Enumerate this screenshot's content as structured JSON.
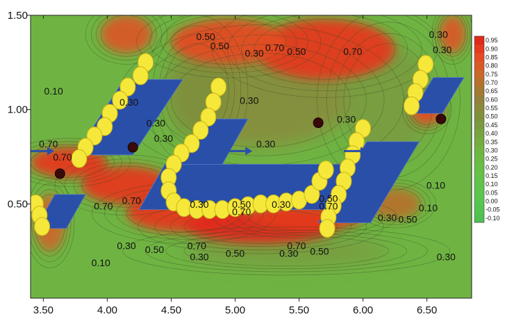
{
  "chart_data": {
    "type": "heatmap",
    "title": "",
    "xlabel": "",
    "ylabel": "",
    "xlim": [
      3.4,
      6.85
    ],
    "ylim": [
      0.0,
      1.5
    ],
    "x_ticks": [
      "3.50",
      "4.00",
      "4.50",
      "5.00",
      "5.50",
      "6.00",
      "6.50"
    ],
    "x_tick_values": [
      3.5,
      4.0,
      4.5,
      5.0,
      5.5,
      6.0,
      6.5
    ],
    "y_ticks": [
      "1.50",
      "1.00",
      "0.50"
    ],
    "y_tick_values": [
      1.5,
      1.0,
      0.5
    ],
    "colorbar": {
      "labels": [
        "0.95",
        "0.90",
        "0.85",
        "0.80",
        "0.75",
        "0.70",
        "0.65",
        "0.60",
        "0.55",
        "0.50",
        "0.45",
        "0.40",
        "0.35",
        "0.30",
        "0.25",
        "0.20",
        "0.15",
        "0.10",
        "0.05",
        "0.00",
        "-0.05",
        "-0.10"
      ],
      "colors": [
        "#e0281c",
        "#e33a20",
        "#e34c24",
        "#d85a26",
        "#c9692a",
        "#b4722d",
        "#a27a32",
        "#94803a",
        "#8a8a3c",
        "#7f903c",
        "#7a9a3e",
        "#78a43f",
        "#74ac40",
        "#70b442",
        "#6cba44",
        "#68be46",
        "#64c248",
        "#60c44a",
        "#5cc64c",
        "#58c64e",
        "#54c450",
        "#50c052"
      ]
    },
    "contour_labels": [
      {
        "x": 3.58,
        "y": 1.08,
        "text": "0.10"
      },
      {
        "x": 4.88,
        "y": 1.32,
        "text": "0.50"
      },
      {
        "x": 4.77,
        "y": 1.37,
        "text": "0.50"
      },
      {
        "x": 5.15,
        "y": 1.28,
        "text": "0.30"
      },
      {
        "x": 5.31,
        "y": 1.31,
        "text": "0.70"
      },
      {
        "x": 5.48,
        "y": 1.29,
        "text": "0.50"
      },
      {
        "x": 5.92,
        "y": 1.29,
        "text": "0.70"
      },
      {
        "x": 6.59,
        "y": 1.38,
        "text": "0.30"
      },
      {
        "x": 6.62,
        "y": 1.3,
        "text": "0.30"
      },
      {
        "x": 5.11,
        "y": 1.03,
        "text": "0.30"
      },
      {
        "x": 4.17,
        "y": 1.02,
        "text": "0.30"
      },
      {
        "x": 4.38,
        "y": 0.91,
        "text": "0.30"
      },
      {
        "x": 4.44,
        "y": 0.83,
        "text": "0.30"
      },
      {
        "x": 5.87,
        "y": 0.93,
        "text": "0.30"
      },
      {
        "x": 5.24,
        "y": 0.8,
        "text": "0.30"
      },
      {
        "x": 3.54,
        "y": 0.8,
        "text": "0.70"
      },
      {
        "x": 3.65,
        "y": 0.73,
        "text": "0.70"
      },
      {
        "x": 6.57,
        "y": 0.58,
        "text": "0.10"
      },
      {
        "x": 6.51,
        "y": 0.46,
        "text": "0.10"
      },
      {
        "x": 3.97,
        "y": 0.47,
        "text": "0.70"
      },
      {
        "x": 4.19,
        "y": 0.5,
        "text": "0.70"
      },
      {
        "x": 4.72,
        "y": 0.48,
        "text": "0.30"
      },
      {
        "x": 5.05,
        "y": 0.48,
        "text": "0.50"
      },
      {
        "x": 5.05,
        "y": 0.44,
        "text": "0.70"
      },
      {
        "x": 5.36,
        "y": 0.48,
        "text": "0.30"
      },
      {
        "x": 5.73,
        "y": 0.51,
        "text": "0.50"
      },
      {
        "x": 5.73,
        "y": 0.47,
        "text": "0.70"
      },
      {
        "x": 6.19,
        "y": 0.41,
        "text": "0.30"
      },
      {
        "x": 6.35,
        "y": 0.4,
        "text": "0.50"
      },
      {
        "x": 4.15,
        "y": 0.26,
        "text": "0.30"
      },
      {
        "x": 4.37,
        "y": 0.24,
        "text": "0.50"
      },
      {
        "x": 4.7,
        "y": 0.26,
        "text": "0.70"
      },
      {
        "x": 4.72,
        "y": 0.2,
        "text": "0.30"
      },
      {
        "x": 5.0,
        "y": 0.22,
        "text": "0.50"
      },
      {
        "x": 5.42,
        "y": 0.22,
        "text": "0.30"
      },
      {
        "x": 5.48,
        "y": 0.26,
        "text": "0.70"
      },
      {
        "x": 5.66,
        "y": 0.23,
        "text": "0.50"
      },
      {
        "x": 6.65,
        "y": 0.2,
        "text": "0.30"
      },
      {
        "x": 3.95,
        "y": 0.17,
        "text": "0.10"
      }
    ],
    "hot_zones": [
      {
        "x": 5.7,
        "y": 1.32,
        "rx": 0.55,
        "ry": 0.16,
        "level": 0.92
      },
      {
        "x": 4.95,
        "y": 1.36,
        "rx": 0.45,
        "ry": 0.12,
        "level": 0.85
      },
      {
        "x": 4.15,
        "y": 1.4,
        "rx": 0.2,
        "ry": 0.1,
        "level": 0.8
      },
      {
        "x": 6.7,
        "y": 1.4,
        "rx": 0.1,
        "ry": 0.1,
        "level": 0.8
      },
      {
        "x": 6.5,
        "y": 1.0,
        "rx": 0.12,
        "ry": 0.08,
        "level": 0.85
      },
      {
        "x": 3.7,
        "y": 0.72,
        "rx": 0.3,
        "ry": 0.08,
        "level": 0.88
      },
      {
        "x": 4.15,
        "y": 0.6,
        "rx": 0.35,
        "ry": 0.1,
        "level": 0.9
      },
      {
        "x": 4.6,
        "y": 0.45,
        "rx": 0.45,
        "ry": 0.1,
        "level": 0.92
      },
      {
        "x": 5.2,
        "y": 0.38,
        "rx": 0.6,
        "ry": 0.09,
        "level": 0.95
      },
      {
        "x": 5.55,
        "y": 0.43,
        "rx": 0.45,
        "ry": 0.07,
        "level": 0.9
      },
      {
        "x": 3.55,
        "y": 0.4,
        "rx": 0.12,
        "ry": 0.15,
        "level": 0.75
      },
      {
        "x": 6.25,
        "y": 0.5,
        "rx": 0.2,
        "ry": 0.08,
        "level": 0.7
      }
    ],
    "olive_zones": [
      {
        "x": 5.2,
        "y": 1.05,
        "rx": 0.7,
        "ry": 0.25,
        "level": 0.55
      },
      {
        "x": 6.2,
        "y": 1.05,
        "rx": 0.35,
        "ry": 0.3,
        "level": 0.45
      },
      {
        "x": 4.7,
        "y": 1.1,
        "rx": 0.25,
        "ry": 0.25,
        "level": 0.5
      },
      {
        "x": 5.4,
        "y": 0.25,
        "rx": 0.8,
        "ry": 0.08,
        "level": 0.45
      }
    ],
    "vortex_points": [
      {
        "x": 3.63,
        "y": 0.66
      },
      {
        "x": 4.2,
        "y": 0.8
      },
      {
        "x": 5.65,
        "y": 0.93
      },
      {
        "x": 6.61,
        "y": 0.95
      }
    ],
    "flow_arrows": [
      {
        "x": 3.4,
        "y": 0.78
      },
      {
        "x": 4.95,
        "y": 0.78
      },
      {
        "x": 5.85,
        "y": 0.78
      }
    ],
    "blue_plates": [
      [
        [
          4.13,
          1.16
        ],
        [
          4.59,
          1.16
        ],
        [
          4.2,
          0.76
        ],
        [
          3.75,
          0.76
        ]
      ],
      [
        [
          4.75,
          0.95
        ],
        [
          5.1,
          0.95
        ],
        [
          4.9,
          0.71
        ],
        [
          4.55,
          0.71
        ]
      ],
      [
        [
          4.45,
          0.71
        ],
        [
          5.92,
          0.71
        ],
        [
          5.72,
          0.47
        ],
        [
          4.25,
          0.47
        ]
      ],
      [
        [
          6.03,
          0.83
        ],
        [
          6.44,
          0.83
        ],
        [
          6.06,
          0.4
        ],
        [
          5.65,
          0.4
        ]
      ],
      [
        [
          6.55,
          1.17
        ],
        [
          6.79,
          1.17
        ],
        [
          6.62,
          0.98
        ],
        [
          6.38,
          0.98
        ]
      ],
      [
        [
          3.59,
          0.55
        ],
        [
          3.83,
          0.55
        ],
        [
          3.68,
          0.37
        ],
        [
          3.44,
          0.37
        ]
      ]
    ],
    "yellow_beads": [
      [
        [
          4.3,
          1.25
        ],
        [
          4.26,
          1.18
        ],
        [
          4.16,
          1.12
        ],
        [
          4.1,
          1.05
        ],
        [
          4.02,
          0.98
        ],
        [
          3.98,
          0.91
        ],
        [
          3.9,
          0.86
        ],
        [
          3.83,
          0.8
        ],
        [
          3.78,
          0.74
        ]
      ],
      [
        [
          4.87,
          1.12
        ],
        [
          4.83,
          1.04
        ],
        [
          4.79,
          0.96
        ],
        [
          4.73,
          0.89
        ],
        [
          4.66,
          0.82
        ],
        [
          4.58,
          0.77
        ],
        [
          4.52,
          0.71
        ],
        [
          4.48,
          0.64
        ],
        [
          4.48,
          0.57
        ],
        [
          4.52,
          0.51
        ],
        [
          4.6,
          0.48
        ],
        [
          4.7,
          0.47
        ],
        [
          4.8,
          0.47
        ],
        [
          4.9,
          0.47
        ],
        [
          5.0,
          0.48
        ],
        [
          5.1,
          0.49
        ],
        [
          5.2,
          0.5
        ],
        [
          5.3,
          0.5
        ],
        [
          5.4,
          0.51
        ],
        [
          5.5,
          0.52
        ],
        [
          5.6,
          0.55
        ],
        [
          5.66,
          0.62
        ],
        [
          5.71,
          0.68
        ]
      ],
      [
        [
          6.0,
          0.9
        ],
        [
          5.95,
          0.83
        ],
        [
          5.92,
          0.76
        ],
        [
          5.88,
          0.69
        ],
        [
          5.85,
          0.62
        ],
        [
          5.81,
          0.55
        ],
        [
          5.77,
          0.49
        ],
        [
          5.73,
          0.43
        ],
        [
          5.72,
          0.37
        ]
      ],
      [
        [
          6.49,
          1.24
        ],
        [
          6.45,
          1.16
        ],
        [
          6.41,
          1.09
        ],
        [
          6.38,
          1.02
        ]
      ],
      [
        [
          3.44,
          0.5
        ],
        [
          3.47,
          0.44
        ],
        [
          3.49,
          0.38
        ]
      ]
    ]
  }
}
